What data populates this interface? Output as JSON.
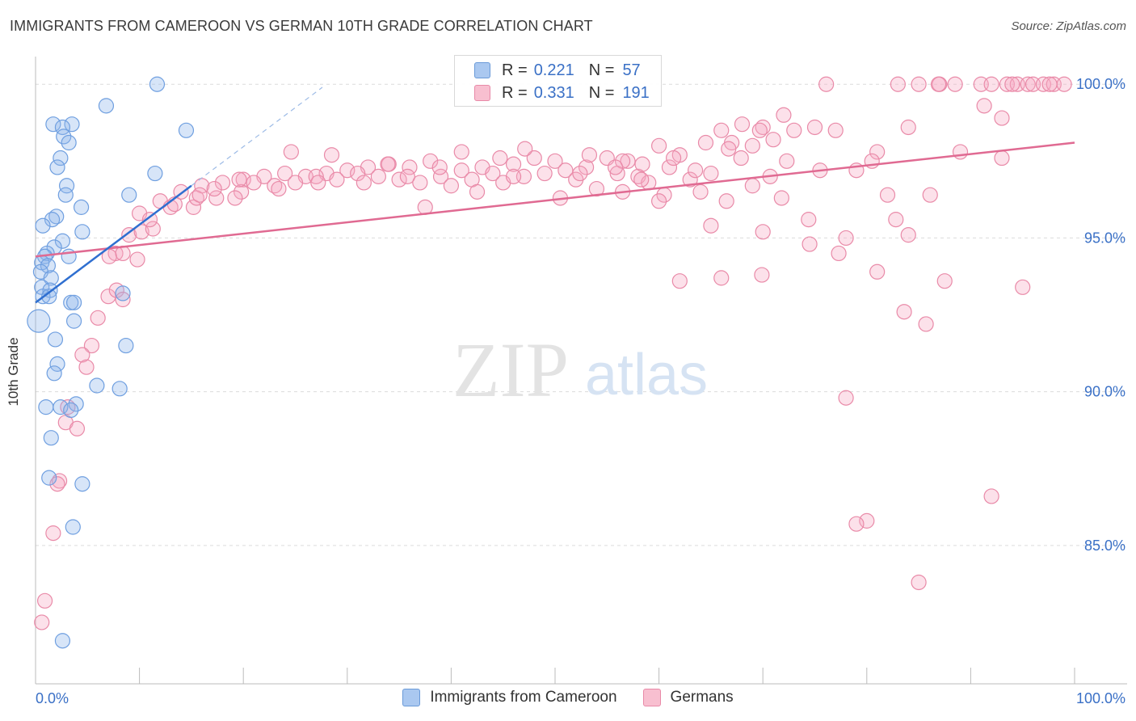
{
  "title": "IMMIGRANTS FROM CAMEROON VS GERMAN 10TH GRADE CORRELATION CHART",
  "source": "Source: ZipAtlas.com",
  "watermark": {
    "zip": "ZIP",
    "atlas": "atlas"
  },
  "legend": {
    "r_label": "R =",
    "n_label": "N =",
    "rows": [
      {
        "r": "0.221",
        "n": "57",
        "color": "#aac8f0",
        "border": "#6a9ad8"
      },
      {
        "r": "0.331",
        "n": "191",
        "color": "#f8bfd0",
        "border": "#e88aa8"
      }
    ]
  },
  "bottom_legend": [
    "Immigrants from Cameroon",
    "Germans"
  ],
  "chart_data": {
    "type": "scatter",
    "title": "IMMIGRANTS FROM CAMEROON VS GERMAN 10TH GRADE CORRELATION CHART",
    "xlabel": "",
    "ylabel": "10th Grade",
    "xlim": [
      0,
      100
    ],
    "ylim": [
      80.5,
      100.9
    ],
    "x_tick_labels": [
      "0.0%",
      "100.0%"
    ],
    "y_ticks": [
      85,
      90,
      95,
      100
    ],
    "y_tick_labels": [
      "85.0%",
      "90.0%",
      "95.0%",
      "100.0%"
    ],
    "grid": true,
    "series": [
      {
        "name": "Immigrants from Cameroon",
        "color": "#6f9fe0",
        "fill": "rgba(140,180,235,0.35)",
        "points": [
          [
            11.7,
            100.0
          ],
          [
            6.8,
            99.3
          ],
          [
            1.7,
            98.7
          ],
          [
            3.5,
            98.7
          ],
          [
            2.6,
            98.6
          ],
          [
            14.5,
            98.5
          ],
          [
            2.7,
            98.3
          ],
          [
            3.2,
            98.1
          ],
          [
            2.4,
            97.6
          ],
          [
            2.1,
            97.3
          ],
          [
            11.5,
            97.1
          ],
          [
            3.0,
            96.7
          ],
          [
            2.9,
            96.4
          ],
          [
            9.0,
            96.4
          ],
          [
            4.4,
            96.0
          ],
          [
            2.0,
            95.7
          ],
          [
            1.6,
            95.6
          ],
          [
            0.7,
            95.4
          ],
          [
            4.5,
            95.2
          ],
          [
            2.6,
            94.9
          ],
          [
            1.8,
            94.7
          ],
          [
            1.1,
            94.5
          ],
          [
            3.2,
            94.4
          ],
          [
            0.9,
            94.4
          ],
          [
            0.6,
            94.2
          ],
          [
            1.2,
            94.1
          ],
          [
            0.5,
            93.9
          ],
          [
            1.5,
            93.7
          ],
          [
            0.6,
            93.4
          ],
          [
            1.4,
            93.3
          ],
          [
            0.7,
            93.1
          ],
          [
            1.3,
            93.1
          ],
          [
            3.4,
            92.9
          ],
          [
            8.4,
            93.2
          ],
          [
            3.7,
            92.9
          ],
          [
            0.3,
            92.3
          ],
          [
            3.7,
            92.3
          ],
          [
            1.9,
            91.7
          ],
          [
            8.7,
            91.5
          ],
          [
            2.1,
            90.9
          ],
          [
            1.8,
            90.6
          ],
          [
            5.9,
            90.2
          ],
          [
            8.1,
            90.1
          ],
          [
            3.9,
            89.6
          ],
          [
            1.0,
            89.5
          ],
          [
            2.4,
            89.5
          ],
          [
            3.4,
            89.4
          ],
          [
            1.5,
            88.5
          ],
          [
            1.3,
            87.2
          ],
          [
            4.5,
            87.0
          ],
          [
            3.6,
            85.6
          ],
          [
            2.6,
            81.9
          ]
        ],
        "trend": [
          [
            0,
            92.9
          ],
          [
            15.0,
            96.7
          ]
        ],
        "trend_dashed": [
          [
            15.0,
            96.7
          ],
          [
            27.6,
            99.9
          ]
        ]
      },
      {
        "name": "Germans",
        "color": "#e98aa8",
        "fill": "rgba(245,170,195,0.35)",
        "points": [
          [
            76.1,
            100.0
          ],
          [
            83.0,
            100.0
          ],
          [
            85.0,
            100.0
          ],
          [
            87.0,
            100.0
          ],
          [
            88.5,
            100.0
          ],
          [
            91.0,
            100.0
          ],
          [
            92.0,
            100.0
          ],
          [
            93.5,
            100.0
          ],
          [
            94.5,
            100.0
          ],
          [
            95.5,
            100.0
          ],
          [
            96.0,
            100.0
          ],
          [
            97.0,
            100.0
          ],
          [
            98.0,
            100.0
          ],
          [
            99.0,
            100.0
          ],
          [
            86.9,
            100.0
          ],
          [
            94.0,
            100.0
          ],
          [
            97.6,
            100.0
          ],
          [
            91.3,
            99.3
          ],
          [
            72.0,
            99.0
          ],
          [
            93.0,
            98.9
          ],
          [
            68.0,
            98.7
          ],
          [
            70.0,
            98.6
          ],
          [
            75.0,
            98.6
          ],
          [
            73.0,
            98.5
          ],
          [
            77.0,
            98.5
          ],
          [
            84.0,
            98.6
          ],
          [
            66.0,
            98.5
          ],
          [
            67.0,
            98.1
          ],
          [
            69.0,
            98.0
          ],
          [
            66.7,
            97.9
          ],
          [
            89.0,
            97.8
          ],
          [
            81.0,
            97.8
          ],
          [
            93.0,
            97.6
          ],
          [
            60.0,
            98.0
          ],
          [
            62.0,
            97.7
          ],
          [
            55.0,
            97.6
          ],
          [
            57.0,
            97.5
          ],
          [
            50.0,
            97.5
          ],
          [
            48.0,
            97.6
          ],
          [
            46.0,
            97.4
          ],
          [
            43.0,
            97.3
          ],
          [
            41.0,
            97.2
          ],
          [
            38.0,
            97.5
          ],
          [
            36.0,
            97.3
          ],
          [
            34.0,
            97.4
          ],
          [
            32.0,
            97.3
          ],
          [
            30.0,
            97.2
          ],
          [
            28.0,
            97.1
          ],
          [
            26.0,
            97.0
          ],
          [
            24.0,
            97.1
          ],
          [
            22.0,
            97.0
          ],
          [
            20.0,
            96.9
          ],
          [
            18.0,
            96.8
          ],
          [
            16.0,
            96.7
          ],
          [
            14.0,
            96.5
          ],
          [
            12.0,
            96.2
          ],
          [
            10.0,
            95.8
          ],
          [
            9.0,
            95.1
          ],
          [
            7.7,
            94.5
          ],
          [
            7.1,
            94.4
          ],
          [
            10.2,
            95.2
          ],
          [
            11.3,
            95.3
          ],
          [
            13.0,
            96.0
          ],
          [
            15.2,
            96.0
          ],
          [
            17.4,
            96.3
          ],
          [
            19.8,
            96.5
          ],
          [
            21.0,
            96.8
          ],
          [
            23.0,
            96.7
          ],
          [
            25.0,
            96.8
          ],
          [
            27.0,
            97.0
          ],
          [
            29.0,
            96.9
          ],
          [
            31.0,
            97.1
          ],
          [
            33.0,
            97.0
          ],
          [
            35.0,
            96.9
          ],
          [
            37.0,
            96.8
          ],
          [
            39.0,
            97.0
          ],
          [
            40.0,
            96.7
          ],
          [
            42.0,
            96.9
          ],
          [
            44.0,
            97.1
          ],
          [
            45.0,
            96.8
          ],
          [
            47.0,
            97.0
          ],
          [
            49.0,
            97.1
          ],
          [
            51.0,
            97.2
          ],
          [
            52.0,
            96.9
          ],
          [
            53.0,
            97.3
          ],
          [
            54.0,
            96.6
          ],
          [
            56.0,
            97.1
          ],
          [
            58.0,
            97.0
          ],
          [
            59.0,
            96.8
          ],
          [
            61.0,
            97.3
          ],
          [
            63.0,
            96.9
          ],
          [
            64.0,
            96.5
          ],
          [
            65.0,
            97.1
          ],
          [
            60.5,
            96.4
          ],
          [
            58.3,
            96.9
          ],
          [
            63.5,
            97.2
          ],
          [
            50.5,
            96.3
          ],
          [
            42.5,
            96.5
          ],
          [
            37.5,
            96.0
          ],
          [
            56.5,
            96.5
          ],
          [
            66.5,
            96.2
          ],
          [
            70.7,
            97.0
          ],
          [
            72.3,
            97.5
          ],
          [
            74.4,
            95.6
          ],
          [
            79.0,
            97.2
          ],
          [
            82.0,
            96.4
          ],
          [
            86.1,
            96.4
          ],
          [
            71.8,
            96.3
          ],
          [
            82.8,
            95.6
          ],
          [
            84.0,
            95.1
          ],
          [
            78.0,
            95.0
          ],
          [
            74.5,
            94.8
          ],
          [
            77.3,
            94.5
          ],
          [
            70.0,
            95.2
          ],
          [
            65.0,
            95.4
          ],
          [
            60.0,
            96.2
          ],
          [
            69.0,
            96.7
          ],
          [
            83.6,
            92.6
          ],
          [
            85.7,
            92.2
          ],
          [
            87.5,
            93.6
          ],
          [
            95.0,
            93.4
          ],
          [
            81.0,
            93.9
          ],
          [
            66.0,
            93.7
          ],
          [
            69.9,
            93.8
          ],
          [
            62.0,
            93.6
          ],
          [
            78.0,
            89.8
          ],
          [
            92.0,
            86.6
          ],
          [
            80.0,
            85.8
          ],
          [
            79.0,
            85.7
          ],
          [
            85.0,
            83.8
          ],
          [
            7.0,
            93.1
          ],
          [
            7.8,
            93.3
          ],
          [
            8.4,
            93.0
          ],
          [
            6.0,
            92.4
          ],
          [
            5.4,
            91.5
          ],
          [
            4.5,
            91.2
          ],
          [
            4.9,
            90.8
          ],
          [
            3.1,
            89.5
          ],
          [
            2.9,
            89.0
          ],
          [
            4.0,
            88.8
          ],
          [
            2.3,
            87.1
          ],
          [
            2.1,
            87.0
          ],
          [
            1.7,
            85.4
          ],
          [
            0.9,
            83.2
          ],
          [
            0.6,
            82.5
          ],
          [
            9.8,
            94.3
          ],
          [
            8.4,
            94.5
          ],
          [
            24.6,
            97.8
          ],
          [
            28.5,
            97.7
          ],
          [
            41.0,
            97.8
          ],
          [
            47.1,
            97.9
          ],
          [
            53.3,
            97.7
          ],
          [
            56.5,
            97.5
          ],
          [
            58.4,
            97.4
          ],
          [
            64.5,
            98.1
          ],
          [
            69.7,
            98.5
          ],
          [
            75.5,
            97.2
          ],
          [
            80.5,
            97.5
          ],
          [
            44.7,
            97.6
          ],
          [
            38.9,
            97.3
          ],
          [
            35.8,
            97.0
          ],
          [
            31.6,
            96.8
          ],
          [
            27.2,
            96.8
          ],
          [
            23.4,
            96.6
          ],
          [
            19.6,
            96.9
          ],
          [
            17.2,
            96.6
          ],
          [
            15.5,
            96.3
          ],
          [
            13.4,
            96.1
          ],
          [
            11.0,
            95.6
          ],
          [
            15.8,
            96.4
          ],
          [
            19.2,
            96.3
          ],
          [
            33.9,
            97.4
          ],
          [
            46.0,
            97.0
          ],
          [
            52.4,
            97.1
          ],
          [
            55.8,
            97.3
          ],
          [
            61.4,
            97.6
          ],
          [
            67.9,
            97.6
          ],
          [
            71.0,
            98.2
          ]
        ],
        "trend": [
          [
            0,
            94.4
          ],
          [
            100,
            98.1
          ]
        ]
      }
    ]
  }
}
